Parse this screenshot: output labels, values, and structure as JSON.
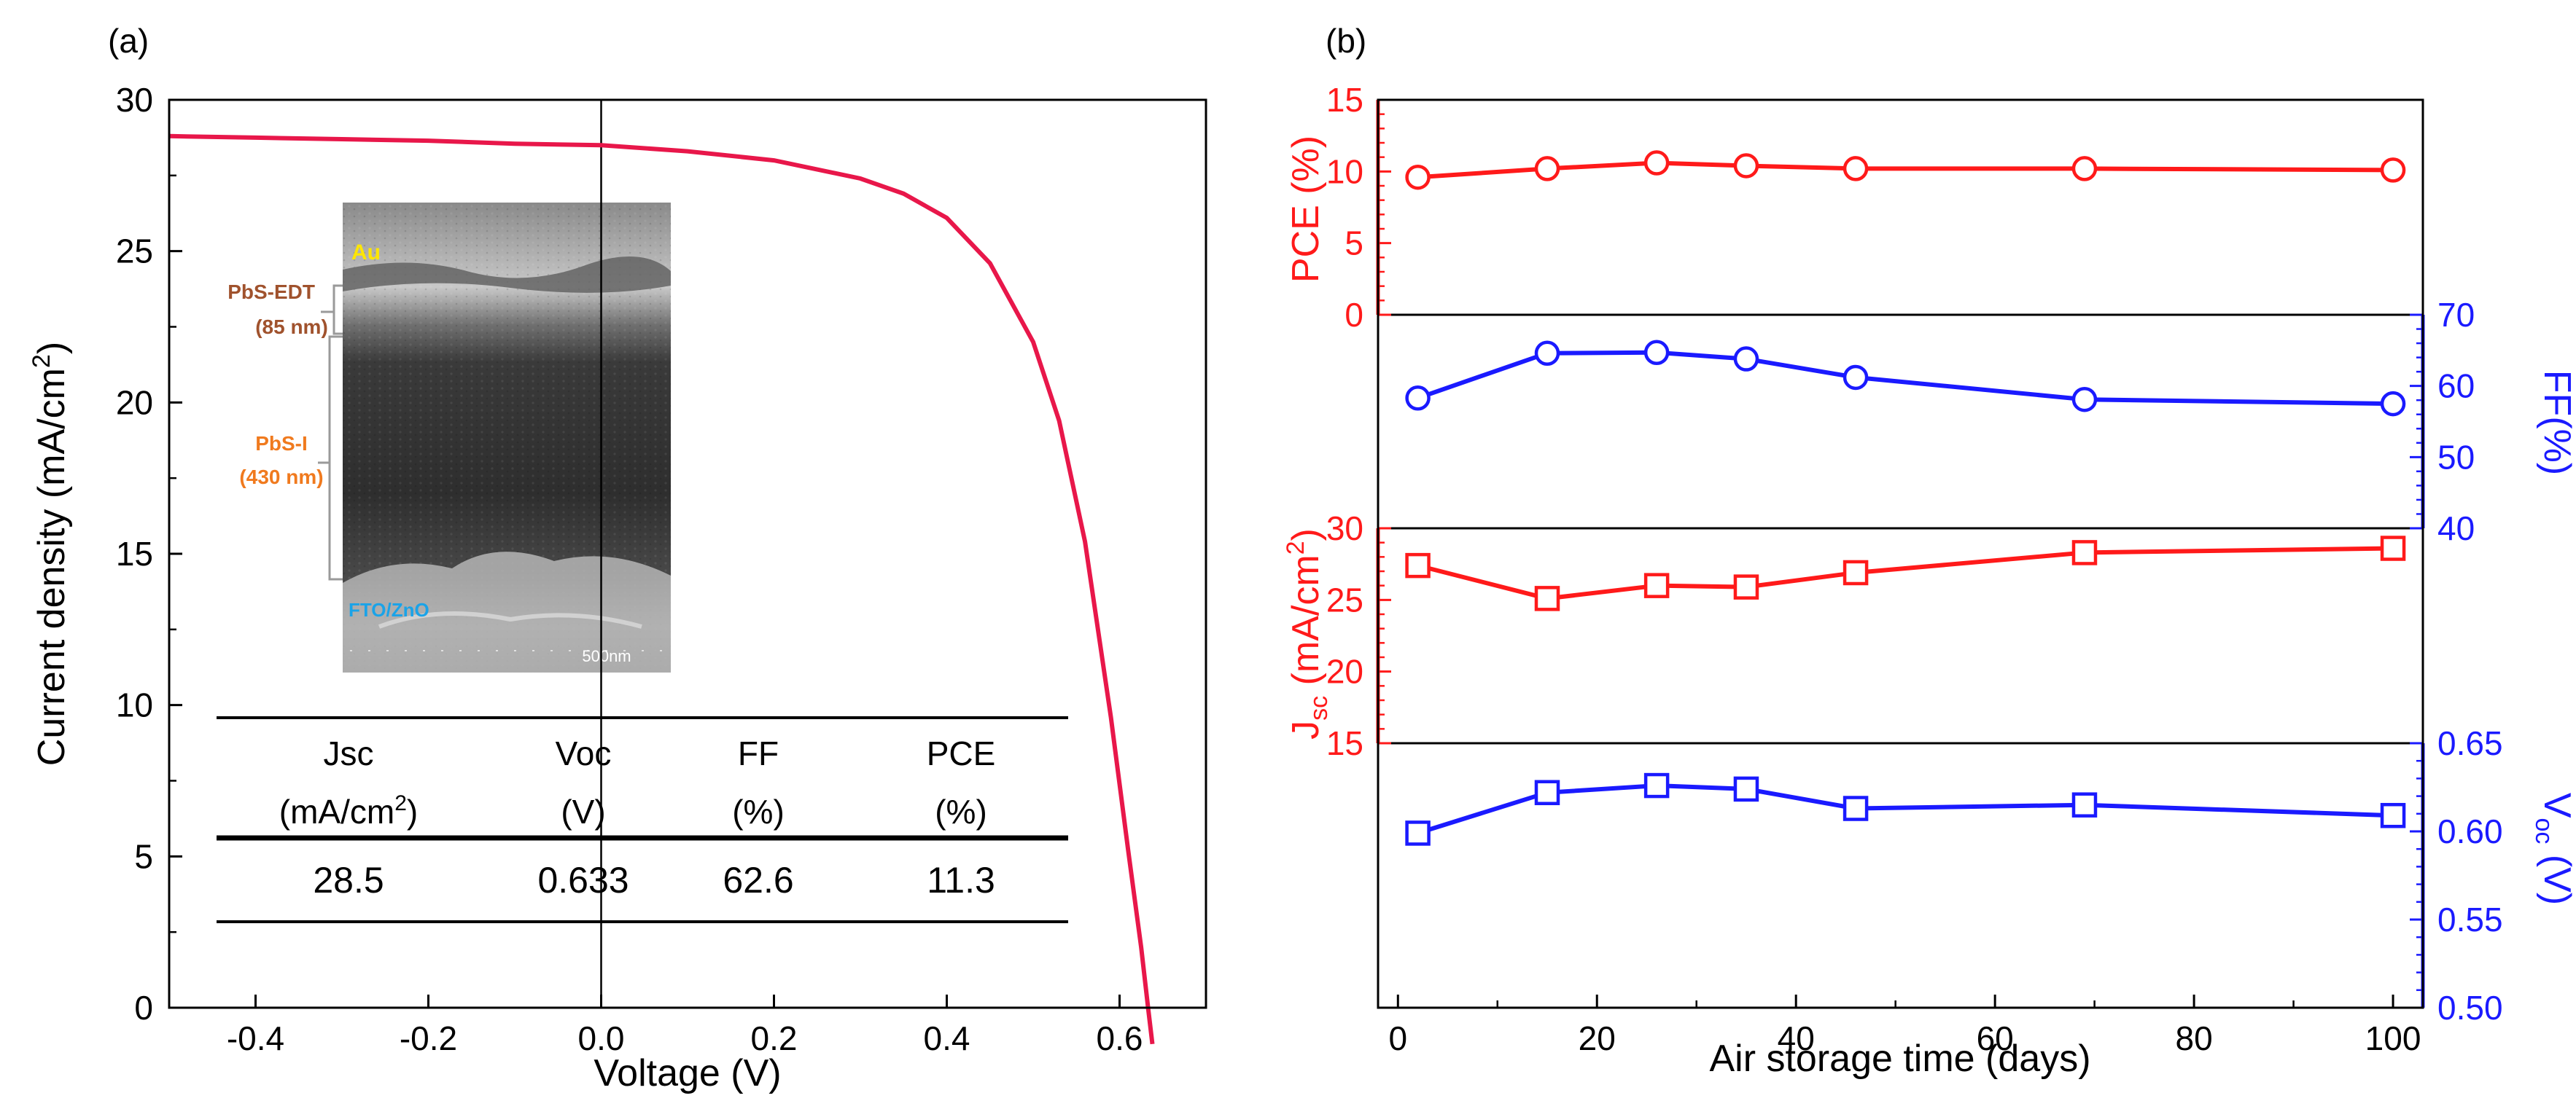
{
  "chart_data": [
    {
      "panel_label": "(a)",
      "type": "line",
      "xlabel": "Voltage (V)",
      "ylabel": "Current density (mA/cm",
      "ylabel_sup": "2",
      "ylabel_close": ")",
      "xlim": [
        -0.5,
        0.7
      ],
      "ylim": [
        0,
        30
      ],
      "xticks": [
        "-0.4",
        "-0.2",
        "0.0",
        "0.2",
        "0.4",
        "0.6"
      ],
      "xtick_values": [
        -0.4,
        -0.2,
        0.0,
        0.2,
        0.4,
        0.6
      ],
      "yticks": [
        "0",
        "5",
        "10",
        "15",
        "20",
        "25",
        "30"
      ],
      "ytick_values": [
        0,
        5,
        10,
        15,
        20,
        25,
        30
      ],
      "color": "#e8174a",
      "series": [
        {
          "name": "J-V curve",
          "x": [
            -0.5,
            -0.4,
            -0.3,
            -0.2,
            -0.1,
            0.0,
            0.1,
            0.2,
            0.3,
            0.35,
            0.4,
            0.45,
            0.5,
            0.53,
            0.56,
            0.59,
            0.61,
            0.625,
            0.633,
            0.638
          ],
          "y": [
            28.8,
            28.75,
            28.7,
            28.65,
            28.55,
            28.5,
            28.3,
            28.0,
            27.4,
            26.9,
            26.1,
            24.6,
            22.0,
            19.4,
            15.4,
            9.6,
            5.2,
            2.0,
            0.0,
            -1.2
          ]
        }
      ],
      "inset_image": {
        "labels": [
          "Au",
          "PbS-EDT",
          "(85 nm)",
          "PbS-I",
          "(430 nm)",
          "FTO/ZnO",
          "500nm"
        ]
      },
      "table": {
        "headers": [
          "Jsc",
          "Voc",
          "FF",
          "PCE"
        ],
        "units": [
          "(mA/cm",
          "(V)",
          "(%)",
          "(%)"
        ],
        "unit_sup": "2",
        "unit_close": ")",
        "values": [
          "28.5",
          "0.633",
          "62.6",
          "11.3"
        ]
      }
    },
    {
      "panel_label": "(b)",
      "type": "line",
      "xlabel": "Air storage time (days)",
      "xlim": [
        -2,
        103
      ],
      "xticks": [
        "0",
        "20",
        "40",
        "60",
        "80",
        "100"
      ],
      "xtick_values": [
        0,
        20,
        40,
        60,
        80,
        100
      ],
      "x": [
        2,
        15,
        26,
        35,
        46,
        69,
        100
      ],
      "series": [
        {
          "name": "PCE",
          "ylabel": "PCE (%)",
          "axis": "left",
          "color": "#ff1a1a",
          "marker": "circle",
          "ylim": [
            0,
            15
          ],
          "yticks": [
            "0",
            "5",
            "10",
            "15"
          ],
          "ytick_values": [
            0,
            5,
            10,
            15
          ],
          "values": [
            9.6,
            10.2,
            10.6,
            10.4,
            10.2,
            10.2,
            10.1
          ]
        },
        {
          "name": "FF",
          "ylabel": "FF(%)",
          "axis": "right",
          "color": "#1a1aff",
          "marker": "circle",
          "ylim": [
            40,
            70
          ],
          "yticks": [
            "40",
            "50",
            "60",
            "70"
          ],
          "ytick_values": [
            40,
            50,
            60,
            70
          ],
          "values": [
            58.3,
            64.6,
            64.7,
            63.8,
            61.2,
            58.1,
            57.5
          ]
        },
        {
          "name": "Jsc",
          "ylabel": "J",
          "ylabel_sub": "sc",
          "ylabel_rest": " (mA/cm",
          "ylabel_sup": "2",
          "ylabel_close": ")",
          "axis": "left",
          "color": "#ff1a1a",
          "marker": "square",
          "ylim": [
            15,
            30
          ],
          "yticks": [
            "15",
            "20",
            "25",
            "30"
          ],
          "ytick_values": [
            15,
            20,
            25,
            30
          ],
          "values": [
            27.4,
            25.1,
            26.0,
            25.9,
            26.9,
            28.3,
            28.6
          ]
        },
        {
          "name": "Voc",
          "ylabel": "V",
          "ylabel_sub": "oc",
          "ylabel_rest": " (V)",
          "axis": "right",
          "color": "#1a1aff",
          "marker": "square",
          "ylim": [
            0.5,
            0.65
          ],
          "yticks": [
            "0.50",
            "0.55",
            "0.60",
            "0.65"
          ],
          "ytick_values": [
            0.5,
            0.55,
            0.6,
            0.65
          ],
          "values": [
            0.599,
            0.622,
            0.626,
            0.624,
            0.613,
            0.615,
            0.609
          ]
        }
      ]
    }
  ]
}
